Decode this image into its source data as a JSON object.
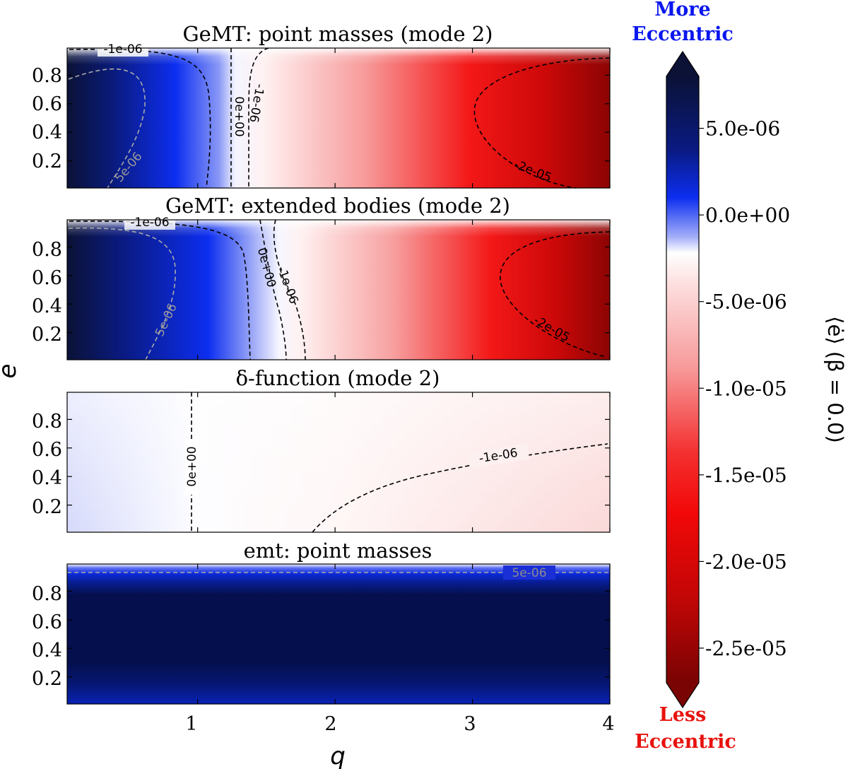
{
  "chart_data": [
    {
      "type": "heatmap",
      "title": "GeMT: point masses (mode 2)",
      "xlim": [
        0.05,
        4
      ],
      "ylim": [
        0.01,
        0.99
      ],
      "xticks": [
        "1",
        "2",
        "3",
        "4"
      ],
      "yticks": [
        "0.2",
        "0.4",
        "0.6",
        "0.8"
      ],
      "zero_q": 1.3,
      "contour_labels": [
        "-1e-06",
        "0e+00",
        "-1e-06",
        "5e-06",
        "-2e-05"
      ],
      "description_values": {
        "min_left": 8e-06,
        "max_right": -2.7e-05
      }
    },
    {
      "type": "heatmap",
      "title": "GeMT: extended bodies (mode 2)",
      "xlim": [
        0.05,
        4
      ],
      "ylim": [
        0.01,
        0.99
      ],
      "xticks": [
        "1",
        "2",
        "3",
        "4"
      ],
      "yticks": [
        "0.2",
        "0.4",
        "0.6",
        "0.8"
      ],
      "zero_q": 1.5,
      "contour_labels": [
        "-1e-06",
        "0e+00",
        "-1e-06",
        "5e-06",
        "-2e-05"
      ]
    },
    {
      "type": "heatmap",
      "title": "δ-function (mode 2)",
      "xlim": [
        0.05,
        4
      ],
      "ylim": [
        0.01,
        0.99
      ],
      "xticks": [
        "1",
        "2",
        "3",
        "4"
      ],
      "yticks": [
        "0.2",
        "0.4",
        "0.6",
        "0.8"
      ],
      "zero_q": 1.0,
      "contour_labels": [
        "0e+00",
        "-1e-06"
      ]
    },
    {
      "type": "heatmap",
      "title": "emt: point masses",
      "xlim": [
        0.05,
        4
      ],
      "ylim": [
        0.01,
        0.99
      ],
      "xticks": [
        "1",
        "2",
        "3",
        "4"
      ],
      "yticks": [
        "0.2",
        "0.4",
        "0.6",
        "0.8"
      ],
      "contour_labels": [
        "5e-06"
      ]
    }
  ],
  "xlabel": "q",
  "ylabel": "e",
  "colorbar": {
    "label": "⟨ė⟩ (β = 0.0)",
    "ticks": [
      "5.0e-06",
      "0.0e+00",
      "-5.0e-06",
      "-1.0e-05",
      "-1.5e-05",
      "-2.0e-05",
      "-2.5e-05"
    ],
    "tick_values": [
      5e-06,
      0,
      -5e-06,
      -1e-05,
      -1.5e-05,
      -2e-05,
      -2.5e-05
    ],
    "vmin": -2.7e-05,
    "vmax": 8e-06,
    "top_text": [
      "More",
      "Eccentric"
    ],
    "bottom_text": [
      "Less",
      "Eccentric"
    ],
    "top_color": "#0a17ee",
    "bottom_color": "#e8120e"
  }
}
